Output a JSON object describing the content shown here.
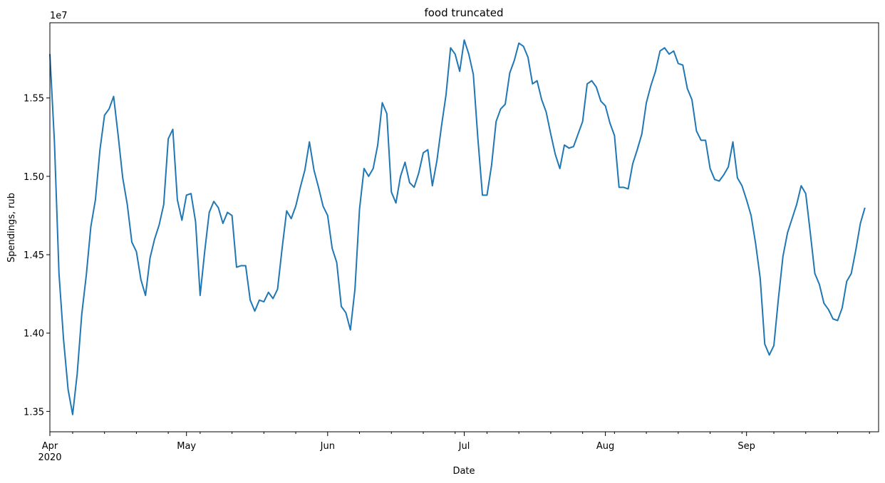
{
  "chart_data": {
    "type": "line",
    "title": "food truncated",
    "xlabel": "Date",
    "ylabel": "Spendings, rub",
    "y_offset_label": "1e7",
    "y_multiplier": 10000000,
    "xlim": [
      "2020-04-01",
      "2020-09-30"
    ],
    "ylim": [
      13.37,
      15.98
    ],
    "y_ticks": [
      13.5,
      14.0,
      14.5,
      15.0,
      15.5
    ],
    "y_tick_labels": [
      "1.35",
      "1.40",
      "1.45",
      "1.50",
      "1.55"
    ],
    "x_major_ticks": [
      {
        "date": "2020-04-01",
        "label": "Apr",
        "sublabel": "2020"
      },
      {
        "date": "2020-05-01",
        "label": "May",
        "sublabel": ""
      },
      {
        "date": "2020-06-01",
        "label": "Jun",
        "sublabel": ""
      },
      {
        "date": "2020-07-01",
        "label": "Jul",
        "sublabel": ""
      },
      {
        "date": "2020-08-01",
        "label": "Aug",
        "sublabel": ""
      },
      {
        "date": "2020-09-01",
        "label": "Sep",
        "sublabel": ""
      }
    ],
    "x_minor_ticks": [
      "2020-04-06",
      "2020-04-13",
      "2020-04-20",
      "2020-04-27",
      "2020-05-04",
      "2020-05-11",
      "2020-05-18",
      "2020-05-25",
      "2020-06-08",
      "2020-06-15",
      "2020-06-22",
      "2020-06-29",
      "2020-07-06",
      "2020-07-13",
      "2020-07-20",
      "2020-07-27",
      "2020-08-03",
      "2020-08-10",
      "2020-08-17",
      "2020-08-24",
      "2020-08-31",
      "2020-09-07",
      "2020-09-14",
      "2020-09-21",
      "2020-09-28"
    ],
    "grid": false,
    "legend": "none",
    "line_color": "#1f77b4",
    "series": [
      {
        "start_date": "2020-04-01",
        "values": [
          15.78,
          15.22,
          14.38,
          13.96,
          13.64,
          13.48,
          13.74,
          14.12,
          14.37,
          14.68,
          14.85,
          15.17,
          15.39,
          15.43,
          15.51,
          15.26,
          14.99,
          14.82,
          14.58,
          14.52,
          14.34,
          14.24,
          14.48,
          14.6,
          14.69,
          14.82,
          15.24,
          15.3,
          14.85,
          14.72,
          14.88,
          14.89,
          14.71,
          14.24,
          14.52,
          14.77,
          14.84,
          14.8,
          14.7,
          14.77,
          14.75,
          14.42,
          14.43,
          14.43,
          14.21,
          14.14,
          14.21,
          14.2,
          14.26,
          14.22,
          14.28,
          14.54,
          14.78,
          14.73,
          14.81,
          14.93,
          15.04,
          15.22,
          15.04,
          14.93,
          14.81,
          14.75,
          14.54,
          14.45,
          14.17,
          14.13,
          14.02,
          14.28,
          14.79,
          15.05,
          15.0,
          15.05,
          15.2,
          15.47,
          15.4,
          14.9,
          14.83,
          15.0,
          15.09,
          14.96,
          14.93,
          15.02,
          15.15,
          15.17,
          14.94,
          15.1,
          15.32,
          15.52,
          15.82,
          15.78,
          15.67,
          15.87,
          15.78,
          15.65,
          15.24,
          14.88,
          14.88,
          15.07,
          15.35,
          15.43,
          15.46,
          15.66,
          15.74,
          15.85,
          15.83,
          15.76,
          15.59,
          15.61,
          15.49,
          15.41,
          15.27,
          15.14,
          15.05,
          15.2,
          15.18,
          15.19,
          15.27,
          15.35,
          15.59,
          15.61,
          15.57,
          15.48,
          15.45,
          15.34,
          15.26,
          14.93,
          14.93,
          14.92,
          15.08,
          15.17,
          15.27,
          15.47,
          15.58,
          15.67,
          15.8,
          15.82,
          15.78,
          15.8,
          15.72,
          15.71,
          15.56,
          15.49,
          15.29,
          15.23,
          15.23,
          15.05,
          14.98,
          14.97,
          15.01,
          15.06,
          15.22,
          14.99,
          14.94,
          14.85,
          14.75,
          14.57,
          14.35,
          13.93,
          13.86,
          13.92,
          14.22,
          14.49,
          14.64,
          14.73,
          14.82,
          14.94,
          14.89,
          14.64,
          14.38,
          14.31,
          14.19,
          14.15,
          14.09,
          14.08,
          14.16,
          14.33,
          14.38,
          14.53,
          14.7,
          14.8
        ]
      }
    ]
  }
}
